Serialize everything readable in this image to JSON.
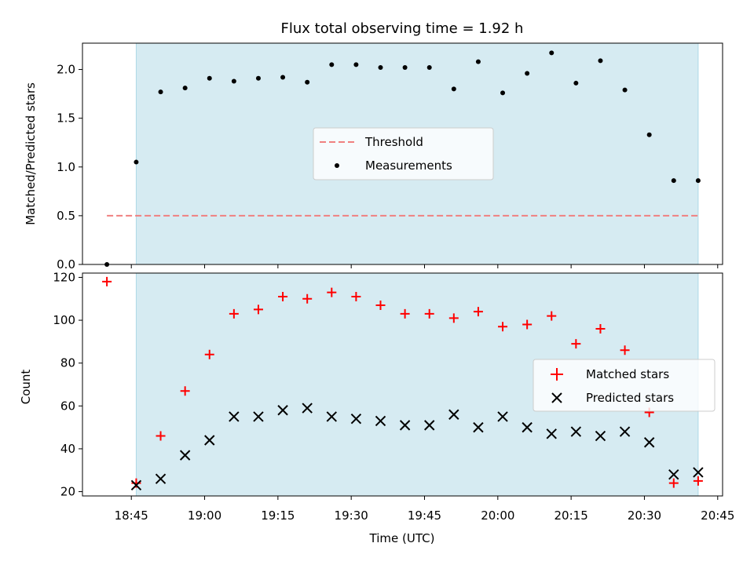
{
  "chart_data": {
    "title": "Flux total observing time = 1.92 h",
    "xlabel": "Time (UTC)",
    "xticks": [
      "18:45",
      "19:00",
      "19:15",
      "19:30",
      "19:45",
      "20:00",
      "20:15",
      "20:30",
      "20:45"
    ],
    "xrange": [
      "18:35",
      "20:46"
    ],
    "times": [
      "18:40",
      "18:46",
      "18:51",
      "18:56",
      "19:01",
      "19:06",
      "19:11",
      "19:16",
      "19:21",
      "19:26",
      "19:31",
      "19:36",
      "19:41",
      "19:46",
      "19:51",
      "19:56",
      "20:01",
      "20:06",
      "20:11",
      "20:16",
      "20:21",
      "20:26",
      "20:31",
      "20:36",
      "20:41"
    ],
    "shaded_span": [
      "18:46",
      "20:41"
    ],
    "colors": {
      "shade": "#add8e6",
      "threshold": "#f08080",
      "matched": "#ff0000",
      "predicted": "#000000",
      "measurement": "#000000"
    },
    "panels": [
      {
        "type": "scatter",
        "ylabel": "Matched/Predicted stars",
        "ylim": [
          0,
          2.27
        ],
        "yticks": [
          "0.0",
          "0.5",
          "1.0",
          "1.5",
          "2.0"
        ],
        "threshold": {
          "name": "Threshold",
          "value": 0.5,
          "x_range": [
            "18:40",
            "20:41"
          ]
        },
        "series": [
          {
            "name": "Measurements",
            "marker": "dot",
            "values": [
              0.0,
              1.05,
              1.77,
              1.81,
              1.91,
              1.88,
              1.91,
              1.92,
              1.87,
              2.05,
              2.05,
              2.02,
              2.02,
              2.02,
              1.8,
              2.08,
              1.76,
              1.96,
              2.17,
              1.86,
              2.09,
              1.79,
              1.33,
              0.86,
              0.86
            ]
          }
        ],
        "legend": {
          "location": "center",
          "entries": [
            "Threshold",
            "Measurements"
          ]
        }
      },
      {
        "type": "scatter",
        "ylabel": "Count",
        "ylim": [
          18,
          122
        ],
        "yticks": [
          "20",
          "40",
          "60",
          "80",
          "100",
          "120"
        ],
        "series": [
          {
            "name": "Matched stars",
            "marker": "plus",
            "values": [
              118,
              24,
              46,
              67,
              84,
              103,
              105,
              111,
              110,
              113,
              111,
              107,
              103,
              103,
              101,
              104,
              97,
              98,
              102,
              89,
              96,
              86,
              57,
              24,
              25
            ]
          },
          {
            "name": "Predicted stars",
            "marker": "x",
            "values": [
              null,
              23,
              26,
              37,
              44,
              55,
              55,
              58,
              59,
              55,
              54,
              53,
              51,
              51,
              56,
              50,
              55,
              50,
              47,
              48,
              46,
              48,
              43,
              28,
              29
            ]
          }
        ],
        "legend": {
          "location": "center right",
          "entries": [
            "Matched stars",
            "Predicted stars"
          ]
        }
      }
    ]
  }
}
